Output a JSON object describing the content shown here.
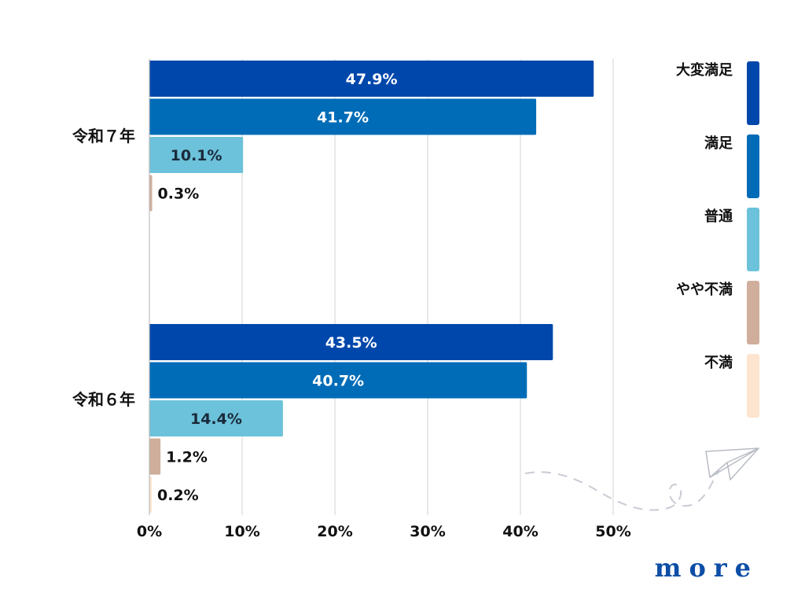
{
  "brand": {
    "logo_text": "more",
    "logo_color": "#0d4ea6"
  },
  "chart_data": {
    "type": "bar",
    "orientation": "horizontal",
    "grid": true,
    "legend_position": "right",
    "xlim": [
      0,
      50
    ],
    "xticks": [
      0,
      10,
      20,
      30,
      40,
      50
    ],
    "xtick_labels": [
      "0%",
      "10%",
      "20%",
      "30%",
      "40%",
      "50%"
    ],
    "categories": [
      "令和７年",
      "令和６年"
    ],
    "series": [
      {
        "name": "大変満足",
        "color": "#0047ab",
        "values": [
          47.9,
          43.5
        ],
        "labels": [
          "47.9%",
          "43.5%"
        ]
      },
      {
        "name": "満足",
        "color": "#006cb7",
        "values": [
          41.7,
          40.7
        ],
        "labels": [
          "41.7%",
          "40.7%"
        ]
      },
      {
        "name": "普通",
        "color": "#6cc2da",
        "values": [
          10.1,
          14.4
        ],
        "labels": [
          "10.1%",
          "14.4%"
        ]
      },
      {
        "name": "やや不満",
        "color": "#cfae9c",
        "values": [
          0.3,
          1.2
        ],
        "labels": [
          "0.3%",
          "1.2%"
        ]
      },
      {
        "name": "不満",
        "color": "#fde4cf",
        "values": [
          null,
          0.2
        ],
        "labels": [
          null,
          "0.2%"
        ]
      }
    ]
  }
}
